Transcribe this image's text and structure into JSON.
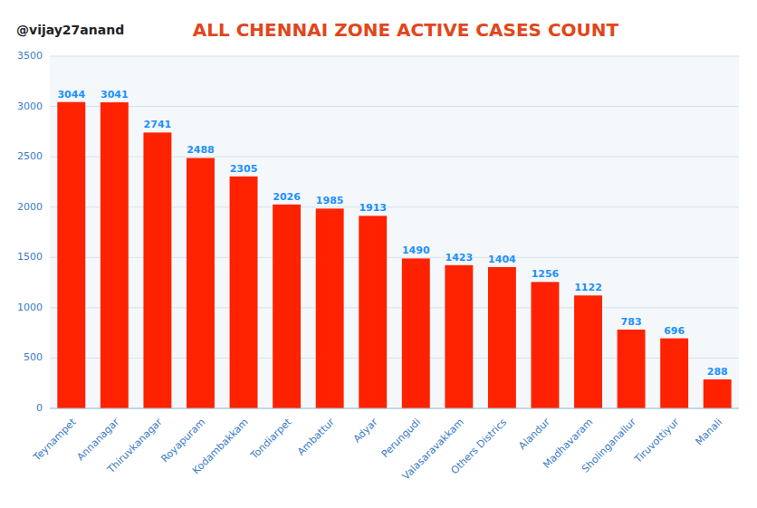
{
  "chart_data": {
    "type": "bar",
    "title": "ALL CHENNAI ZONE ACTIVE CASES COUNT",
    "subtitle": "@vijay27anand",
    "categories": [
      "Teynampet",
      "Annanagar",
      "Thiruvkanagar",
      "Royapuram",
      "Kodambakkam",
      "Tondiarpet",
      "Ambattur",
      "Adyar",
      "Perungudi",
      "Valasaravakkam",
      "Others Districs",
      "Alandur",
      "Madhavaram",
      "Sholinganallur",
      "Tiruvottiyur",
      "Manali"
    ],
    "values": [
      3044,
      3041,
      2741,
      2488,
      2305,
      2026,
      1985,
      1913,
      1490,
      1423,
      1404,
      1256,
      1122,
      783,
      696,
      288
    ],
    "color": "#FF2200",
    "ylim": [
      0,
      3500
    ],
    "yticks": [
      0,
      500,
      1000,
      1500,
      2000,
      2500,
      3000,
      3500
    ],
    "grid": true,
    "data_labels": true
  }
}
